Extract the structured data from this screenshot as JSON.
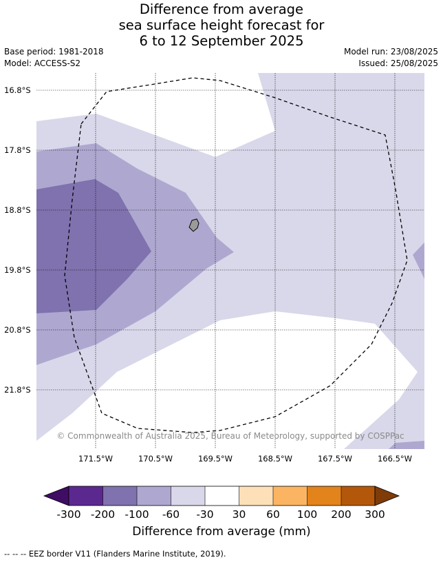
{
  "title": {
    "line1": "Difference from average",
    "line2": "sea surface height forecast for",
    "line3": "6 to 12 September 2025"
  },
  "meta": {
    "base_period": "Base period: 1981-2018",
    "model": "Model: ACCESS-S2",
    "model_run": "Model run: 23/08/2025",
    "issued": "Issued: 25/08/2025"
  },
  "map": {
    "latitude_labels": [
      "16.8°S",
      "17.8°S",
      "18.8°S",
      "19.8°S",
      "20.8°S",
      "21.8°S"
    ],
    "longitude_labels": [
      "171.5°W",
      "170.5°W",
      "169.5°W",
      "168.5°W",
      "167.5°W",
      "166.5°W"
    ],
    "copyright": "© Commonwealth of Australia 2025, Bureau of Meteorology, supported by COSPPac",
    "island": "Niue",
    "eez_border_style": "dashed"
  },
  "colorbar": {
    "title": "Difference from average (mm)",
    "ticks": [
      "-300",
      "-200",
      "-100",
      "-60",
      "-30",
      "30",
      "60",
      "100",
      "200",
      "300"
    ],
    "colors": [
      "#3f0d64",
      "#5b2890",
      "#7f72ae",
      "#aea8d0",
      "#d8d8ea",
      "#ffffff",
      "#fde0b7",
      "#fbb562",
      "#e3831b",
      "#b3580a",
      "#7f3b08"
    ]
  },
  "footnote": "-- -- -- EEZ border V11 (Flanders Marine Institute, 2019)."
}
